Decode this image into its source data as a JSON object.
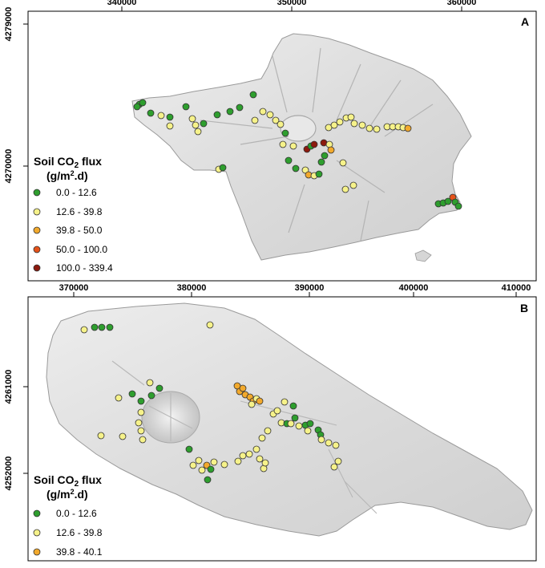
{
  "panel_a": {
    "letter": "A",
    "top_ticks": [
      "340000",
      "350000",
      "360000"
    ],
    "left_ticks": [
      "4279000",
      "4270000"
    ],
    "legend": {
      "title_main": "Soil CO",
      "title_sub": "2",
      "title_end": " flux",
      "unit_pre": "(g/m",
      "unit_sup": "2",
      "unit_post": ".d)",
      "items": [
        {
          "label": "0.0 - 12.6",
          "color": "#2e9e2e"
        },
        {
          "label": "12.6 - 39.8",
          "color": "#f6f28a"
        },
        {
          "label": "39.8 - 50.0",
          "color": "#f2a92c"
        },
        {
          "label": "50.0 - 100.0",
          "color": "#e5531a"
        },
        {
          "label": "100.0 - 339.4",
          "color": "#8c1a0e"
        }
      ]
    }
  },
  "panel_b": {
    "letter": "B",
    "top_ticks": [
      "370000",
      "380000",
      "390000",
      "400000",
      "410000"
    ],
    "left_ticks": [
      "4261000",
      "4252000"
    ],
    "legend": {
      "title_main": "Soil CO",
      "title_sub": "2",
      "title_end": " flux",
      "unit_pre": "(g/m",
      "unit_sup": "2",
      "unit_post": ".d)",
      "items": [
        {
          "label": "0.0 - 12.6",
          "color": "#2e9e2e"
        },
        {
          "label": "12.6 - 39.8",
          "color": "#f6f28a"
        },
        {
          "label": "39.8 - 40.1",
          "color": "#f2a92c"
        }
      ]
    }
  }
}
